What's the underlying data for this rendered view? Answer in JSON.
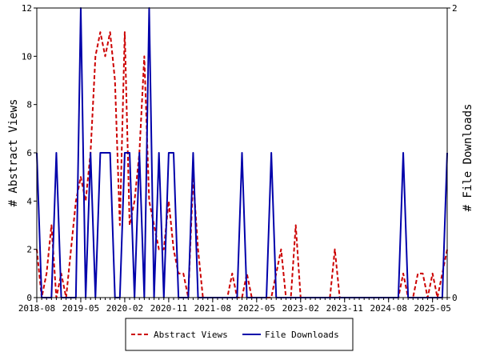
{
  "chart_data": {
    "type": "line",
    "title": "",
    "xlabel": "",
    "ylabel": "# Abstract Views",
    "y2label": "# File Downloads",
    "x_ticks": [
      "2018-08",
      "2019-05",
      "2020-02",
      "2020-11",
      "2021-08",
      "2022-05",
      "2023-02",
      "2023-11",
      "2024-08",
      "2025-05"
    ],
    "y_ticks": [
      "0",
      "2",
      "4",
      "6",
      "8",
      "10",
      "12"
    ],
    "y2_ticks": [
      "0",
      "2"
    ],
    "ylim": [
      0,
      12
    ],
    "y2lim": [
      0,
      2
    ],
    "xlim_months": [
      0,
      84
    ],
    "grid": false,
    "legend_position": "bottom",
    "series": [
      {
        "name": "Abstract Views",
        "axis": "left",
        "color": "#cc0000",
        "style": "dashed",
        "points": [
          [
            0,
            2
          ],
          [
            1,
            0
          ],
          [
            2,
            1
          ],
          [
            3,
            3
          ],
          [
            4,
            0
          ],
          [
            5,
            1
          ],
          [
            6,
            0
          ],
          [
            7,
            2
          ],
          [
            8,
            4
          ],
          [
            9,
            5
          ],
          [
            10,
            4
          ],
          [
            11,
            6
          ],
          [
            12,
            10
          ],
          [
            13,
            11
          ],
          [
            14,
            10
          ],
          [
            15,
            11
          ],
          [
            16,
            9
          ],
          [
            17,
            3
          ],
          [
            18,
            11
          ],
          [
            19,
            3
          ],
          [
            20,
            4
          ],
          [
            21,
            6
          ],
          [
            22,
            10
          ],
          [
            23,
            4
          ],
          [
            24,
            3
          ],
          [
            25,
            2
          ],
          [
            26,
            2
          ],
          [
            27,
            4
          ],
          [
            28,
            2
          ],
          [
            29,
            1
          ],
          [
            30,
            1
          ],
          [
            31,
            0
          ],
          [
            32,
            5
          ],
          [
            33,
            2
          ],
          [
            34,
            0
          ],
          [
            35,
            0
          ],
          [
            36,
            0
          ],
          [
            37,
            0
          ],
          [
            38,
            0
          ],
          [
            39,
            0
          ],
          [
            40,
            1
          ],
          [
            41,
            0
          ],
          [
            42,
            0
          ],
          [
            43,
            1
          ],
          [
            44,
            0
          ],
          [
            45,
            0
          ],
          [
            46,
            0
          ],
          [
            47,
            0
          ],
          [
            48,
            0
          ],
          [
            49,
            1
          ],
          [
            50,
            2
          ],
          [
            51,
            0
          ],
          [
            52,
            0
          ],
          [
            53,
            3
          ],
          [
            54,
            0
          ],
          [
            55,
            0
          ],
          [
            56,
            0
          ],
          [
            57,
            0
          ],
          [
            58,
            0
          ],
          [
            59,
            0
          ],
          [
            60,
            0
          ],
          [
            61,
            2
          ],
          [
            62,
            0
          ],
          [
            63,
            0
          ],
          [
            64,
            0
          ],
          [
            65,
            0
          ],
          [
            66,
            0
          ],
          [
            67,
            0
          ],
          [
            68,
            0
          ],
          [
            69,
            0
          ],
          [
            70,
            0
          ],
          [
            71,
            0
          ],
          [
            72,
            0
          ],
          [
            73,
            0
          ],
          [
            74,
            0
          ],
          [
            75,
            1
          ],
          [
            76,
            0
          ],
          [
            77,
            0
          ],
          [
            78,
            1
          ],
          [
            79,
            1
          ],
          [
            80,
            0
          ],
          [
            81,
            1
          ],
          [
            82,
            0
          ],
          [
            83,
            1
          ],
          [
            84,
            2
          ]
        ]
      },
      {
        "name": "File Downloads",
        "axis": "right",
        "color": "#0000aa",
        "style": "solid",
        "points": [
          [
            0,
            1
          ],
          [
            1,
            0
          ],
          [
            2,
            0
          ],
          [
            3,
            0
          ],
          [
            4,
            1
          ],
          [
            5,
            0
          ],
          [
            6,
            0
          ],
          [
            7,
            0
          ],
          [
            8,
            0
          ],
          [
            9,
            2
          ],
          [
            10,
            0
          ],
          [
            11,
            1
          ],
          [
            12,
            0
          ],
          [
            13,
            1
          ],
          [
            14,
            1
          ],
          [
            15,
            1
          ],
          [
            16,
            0
          ],
          [
            17,
            0
          ],
          [
            18,
            1
          ],
          [
            19,
            1
          ],
          [
            20,
            0
          ],
          [
            21,
            1
          ],
          [
            22,
            0
          ],
          [
            23,
            2
          ],
          [
            24,
            0
          ],
          [
            25,
            1
          ],
          [
            26,
            0
          ],
          [
            27,
            1
          ],
          [
            28,
            1
          ],
          [
            29,
            0
          ],
          [
            30,
            0
          ],
          [
            31,
            0
          ],
          [
            32,
            1
          ],
          [
            33,
            0
          ],
          [
            34,
            0
          ],
          [
            35,
            0
          ],
          [
            36,
            0
          ],
          [
            37,
            0
          ],
          [
            38,
            0
          ],
          [
            39,
            0
          ],
          [
            40,
            0
          ],
          [
            41,
            0
          ],
          [
            42,
            1
          ],
          [
            43,
            0
          ],
          [
            44,
            0
          ],
          [
            45,
            0
          ],
          [
            46,
            0
          ],
          [
            47,
            0
          ],
          [
            48,
            1
          ],
          [
            49,
            0
          ],
          [
            50,
            0
          ],
          [
            51,
            0
          ],
          [
            52,
            0
          ],
          [
            53,
            0
          ],
          [
            54,
            0
          ],
          [
            55,
            0
          ],
          [
            56,
            0
          ],
          [
            57,
            0
          ],
          [
            58,
            0
          ],
          [
            59,
            0
          ],
          [
            60,
            0
          ],
          [
            61,
            0
          ],
          [
            62,
            0
          ],
          [
            63,
            0
          ],
          [
            64,
            0
          ],
          [
            65,
            0
          ],
          [
            66,
            0
          ],
          [
            67,
            0
          ],
          [
            68,
            0
          ],
          [
            69,
            0
          ],
          [
            70,
            0
          ],
          [
            71,
            0
          ],
          [
            72,
            0
          ],
          [
            73,
            0
          ],
          [
            74,
            0
          ],
          [
            75,
            1
          ],
          [
            76,
            0
          ],
          [
            77,
            0
          ],
          [
            78,
            0
          ],
          [
            79,
            0
          ],
          [
            80,
            0
          ],
          [
            81,
            0
          ],
          [
            82,
            0
          ],
          [
            83,
            0
          ],
          [
            84,
            1
          ]
        ]
      }
    ]
  }
}
